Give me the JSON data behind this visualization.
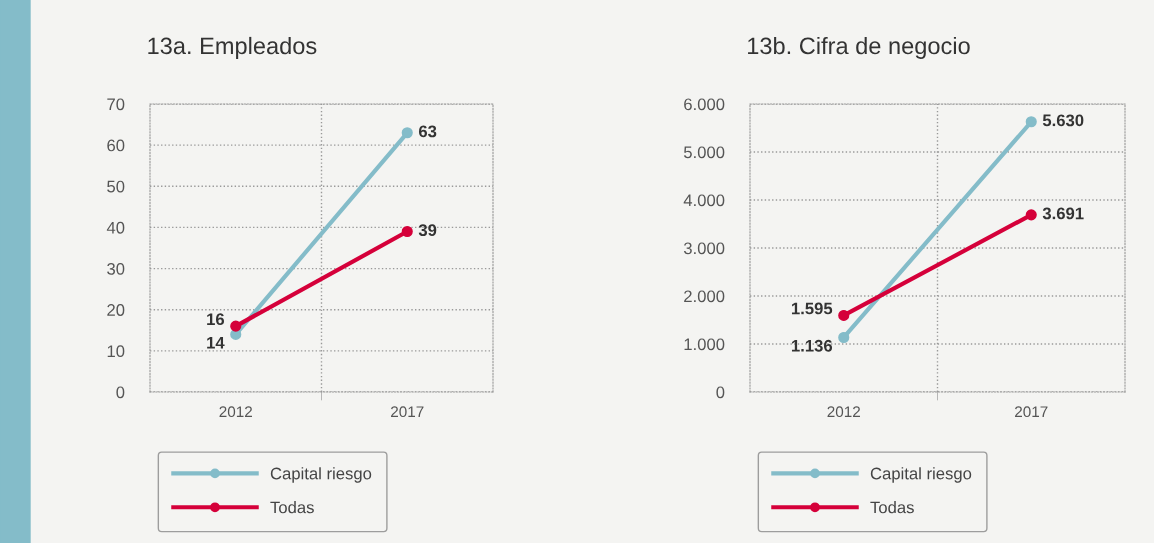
{
  "chart_data": [
    {
      "type": "line",
      "title": "13a. Empleados",
      "categories": [
        "2012",
        "2017"
      ],
      "series": [
        {
          "name": "Capital riesgo",
          "color": "#84bcc9",
          "values": [
            14,
            63
          ],
          "value_labels": [
            "14",
            "63"
          ]
        },
        {
          "name": "Todas",
          "color": "#d5003a",
          "values": [
            16,
            39
          ],
          "value_labels": [
            "16",
            "39"
          ]
        }
      ],
      "ylim": [
        0,
        70
      ],
      "yticks": [
        0,
        10,
        20,
        30,
        40,
        50,
        60,
        70
      ],
      "grid": true,
      "legend": "bottom",
      "marker": "circle",
      "line_style": "solid"
    },
    {
      "type": "line",
      "title": "13b. Cifra de negocio",
      "categories": [
        "2012",
        "2017"
      ],
      "series": [
        {
          "name": "Capital riesgo",
          "color": "#84bcc9",
          "values": [
            1136,
            5630
          ],
          "value_labels": [
            "1.136",
            "5.630"
          ]
        },
        {
          "name": "Todas",
          "color": "#d5003a",
          "values": [
            1595,
            3691
          ],
          "value_labels": [
            "1.595",
            "3.691"
          ]
        }
      ],
      "ylim": [
        0,
        6000
      ],
      "yticks": [
        0,
        {
          "value": 1000,
          "label": "1.000"
        },
        {
          "value": 2000,
          "label": "2.000"
        },
        {
          "value": 3000,
          "label": "3.000"
        },
        {
          "value": 4000,
          "label": "4.000"
        },
        {
          "value": 5000,
          "label": "5.000"
        },
        {
          "value": 6000,
          "label": "6.000"
        }
      ],
      "grid": true,
      "legend": "bottom",
      "marker": "circle",
      "line_style": "solid"
    }
  ]
}
